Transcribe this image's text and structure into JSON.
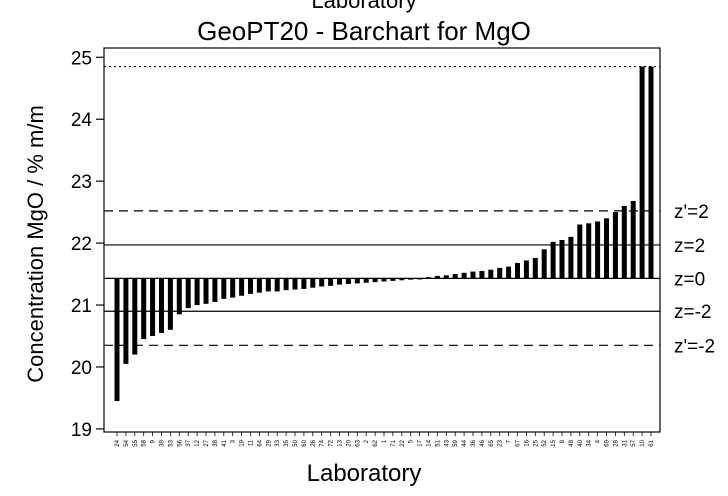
{
  "chart_data": {
    "type": "bar",
    "top_text": "Laboratory",
    "title": "GeoPT20 - Barchart for MgO",
    "xlabel": "Laboratory",
    "ylabel": "Concentration MgO / % m/m",
    "ylim": [
      18.95,
      25.15
    ],
    "yticks": [
      19,
      20,
      21,
      22,
      23,
      24,
      25
    ],
    "baseline": 21.43,
    "categories": [
      "24",
      "54",
      "55",
      "58",
      "9",
      "39",
      "53",
      "56",
      "37",
      "12",
      "27",
      "38",
      "41",
      "3",
      "19",
      "11",
      "64",
      "29",
      "33",
      "35",
      "50",
      "60",
      "26",
      "74",
      "72",
      "13",
      "20",
      "63",
      "2",
      "62",
      "1",
      "71",
      "22",
      "5",
      "17",
      "14",
      "51",
      "43",
      "59",
      "44",
      "36",
      "46",
      "65",
      "23",
      "7",
      "67",
      "16",
      "25",
      "52",
      "15",
      "8",
      "48",
      "40",
      "34",
      "4",
      "69",
      "28",
      "31",
      "57",
      "10",
      "61"
    ],
    "values": [
      19.45,
      20.05,
      20.2,
      20.45,
      20.5,
      20.55,
      20.6,
      20.85,
      20.95,
      21.0,
      21.02,
      21.05,
      21.1,
      21.12,
      21.15,
      21.18,
      21.2,
      21.22,
      21.22,
      21.24,
      21.25,
      21.26,
      21.28,
      21.3,
      21.31,
      21.33,
      21.34,
      21.35,
      21.36,
      21.37,
      21.38,
      21.39,
      21.4,
      21.41,
      21.42,
      21.45,
      21.47,
      21.48,
      21.5,
      21.52,
      21.54,
      21.55,
      21.57,
      21.6,
      21.62,
      21.68,
      21.72,
      21.76,
      21.9,
      22.02,
      22.05,
      22.1,
      22.3,
      22.32,
      22.35,
      22.4,
      22.5,
      22.6,
      22.68,
      24.85,
      24.85
    ],
    "reference_lines": [
      {
        "label": "",
        "value": 24.85,
        "style": "dotted"
      },
      {
        "label": "z'=2",
        "value": 22.52,
        "style": "dashed"
      },
      {
        "label": "z=2",
        "value": 21.97,
        "style": "solid"
      },
      {
        "label": "z=0",
        "value": 21.43,
        "style": "solid"
      },
      {
        "label": "z=-2",
        "value": 20.9,
        "style": "solid"
      },
      {
        "label": "z'=-2",
        "value": 20.35,
        "style": "dashed"
      }
    ],
    "grid": false,
    "legend": "none"
  }
}
